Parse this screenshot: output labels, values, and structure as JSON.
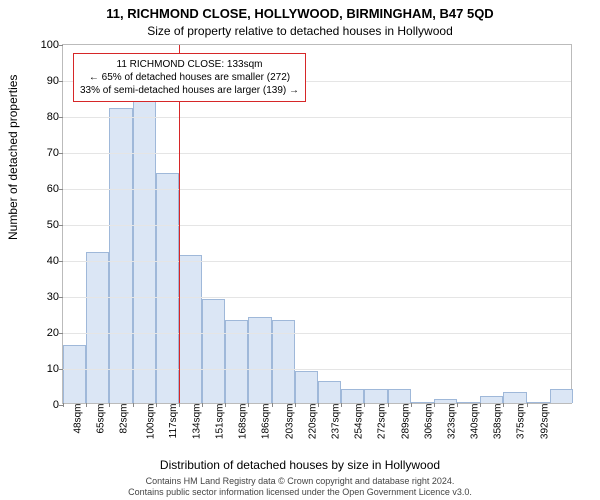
{
  "title_main": "11, RICHMOND CLOSE, HOLLYWOOD, BIRMINGHAM, B47 5QD",
  "title_sub": "Size of property relative to detached houses in Hollywood",
  "ylabel": "Number of detached properties",
  "xlabel": "Distribution of detached houses by size in Hollywood",
  "footer_line1": "Contains HM Land Registry data © Crown copyright and database right 2024.",
  "footer_line2": "Contains public sector information licensed under the Open Government Licence v3.0.",
  "chart": {
    "type": "histogram",
    "ylim": [
      0,
      100
    ],
    "ytick_step": 10,
    "bar_fill": "#dbe6f5",
    "bar_stroke": "#9fb8d9",
    "grid_color": "#e5e5e5",
    "axis_color": "#bbbbbb",
    "background_color": "#ffffff",
    "reference_line": {
      "x_index": 5,
      "color": "#d62728",
      "label_prefix_sqm": 133
    },
    "categories_sqm": [
      48,
      65,
      82,
      100,
      117,
      134,
      151,
      168,
      186,
      203,
      220,
      237,
      254,
      272,
      289,
      306,
      323,
      340,
      358,
      375,
      392
    ],
    "values": [
      16,
      42,
      82,
      86,
      64,
      41,
      29,
      23,
      24,
      23,
      9,
      6,
      4,
      4,
      4,
      0,
      1,
      0,
      2,
      3,
      0,
      4
    ]
  },
  "annotation": {
    "line1": "11 RICHMOND CLOSE: 133sqm",
    "line2": "← 65% of detached houses are smaller (272)",
    "line3": "33% of semi-detached houses are larger (139) →",
    "border_color": "#d62728",
    "bg_color": "#ffffff"
  }
}
